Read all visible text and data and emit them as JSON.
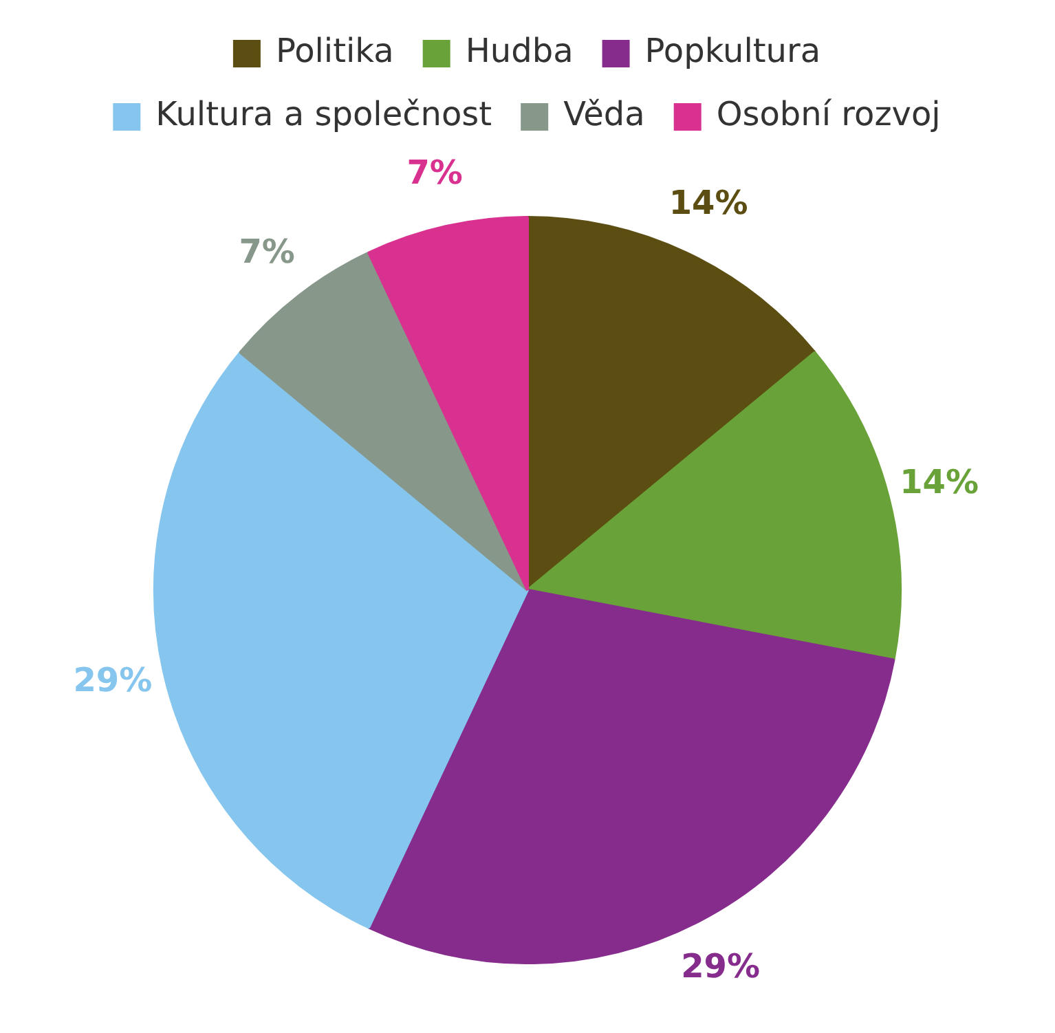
{
  "chart_data": {
    "type": "pie",
    "categories": [
      "Politika",
      "Hudba",
      "Popkultura",
      "Kultura a společnost",
      "Věda",
      "Osobní rozvoj"
    ],
    "values": [
      14,
      14,
      29,
      29,
      7,
      7
    ],
    "colors": [
      "#5c4e12",
      "#6aa23a",
      "#862c8c",
      "#86c6ee",
      "#87988b",
      "#d93190"
    ],
    "value_labels": [
      "14%",
      "14%",
      "29%",
      "29%",
      "7%",
      "7%"
    ],
    "legend": "top"
  }
}
